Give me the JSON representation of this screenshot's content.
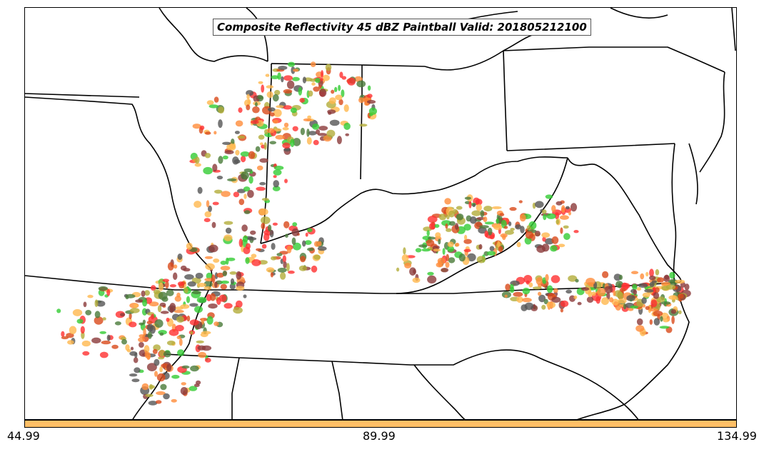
{
  "map": {
    "title": "Composite Reflectivity 45 dBZ Paintball Valid: 201805212100",
    "background": "#ffffff",
    "border_color": "#000000",
    "member_colors": [
      "#ff3030",
      "#ff8c3a",
      "#ffb84d",
      "#33cc33",
      "#4a7a3a",
      "#b3ad3a",
      "#8b3a3a",
      "#555555",
      "#d94a1a"
    ]
  },
  "colorbar": {
    "color": "#ffbf66",
    "ticks": [
      "44.99",
      "89.99",
      "134.99"
    ]
  }
}
